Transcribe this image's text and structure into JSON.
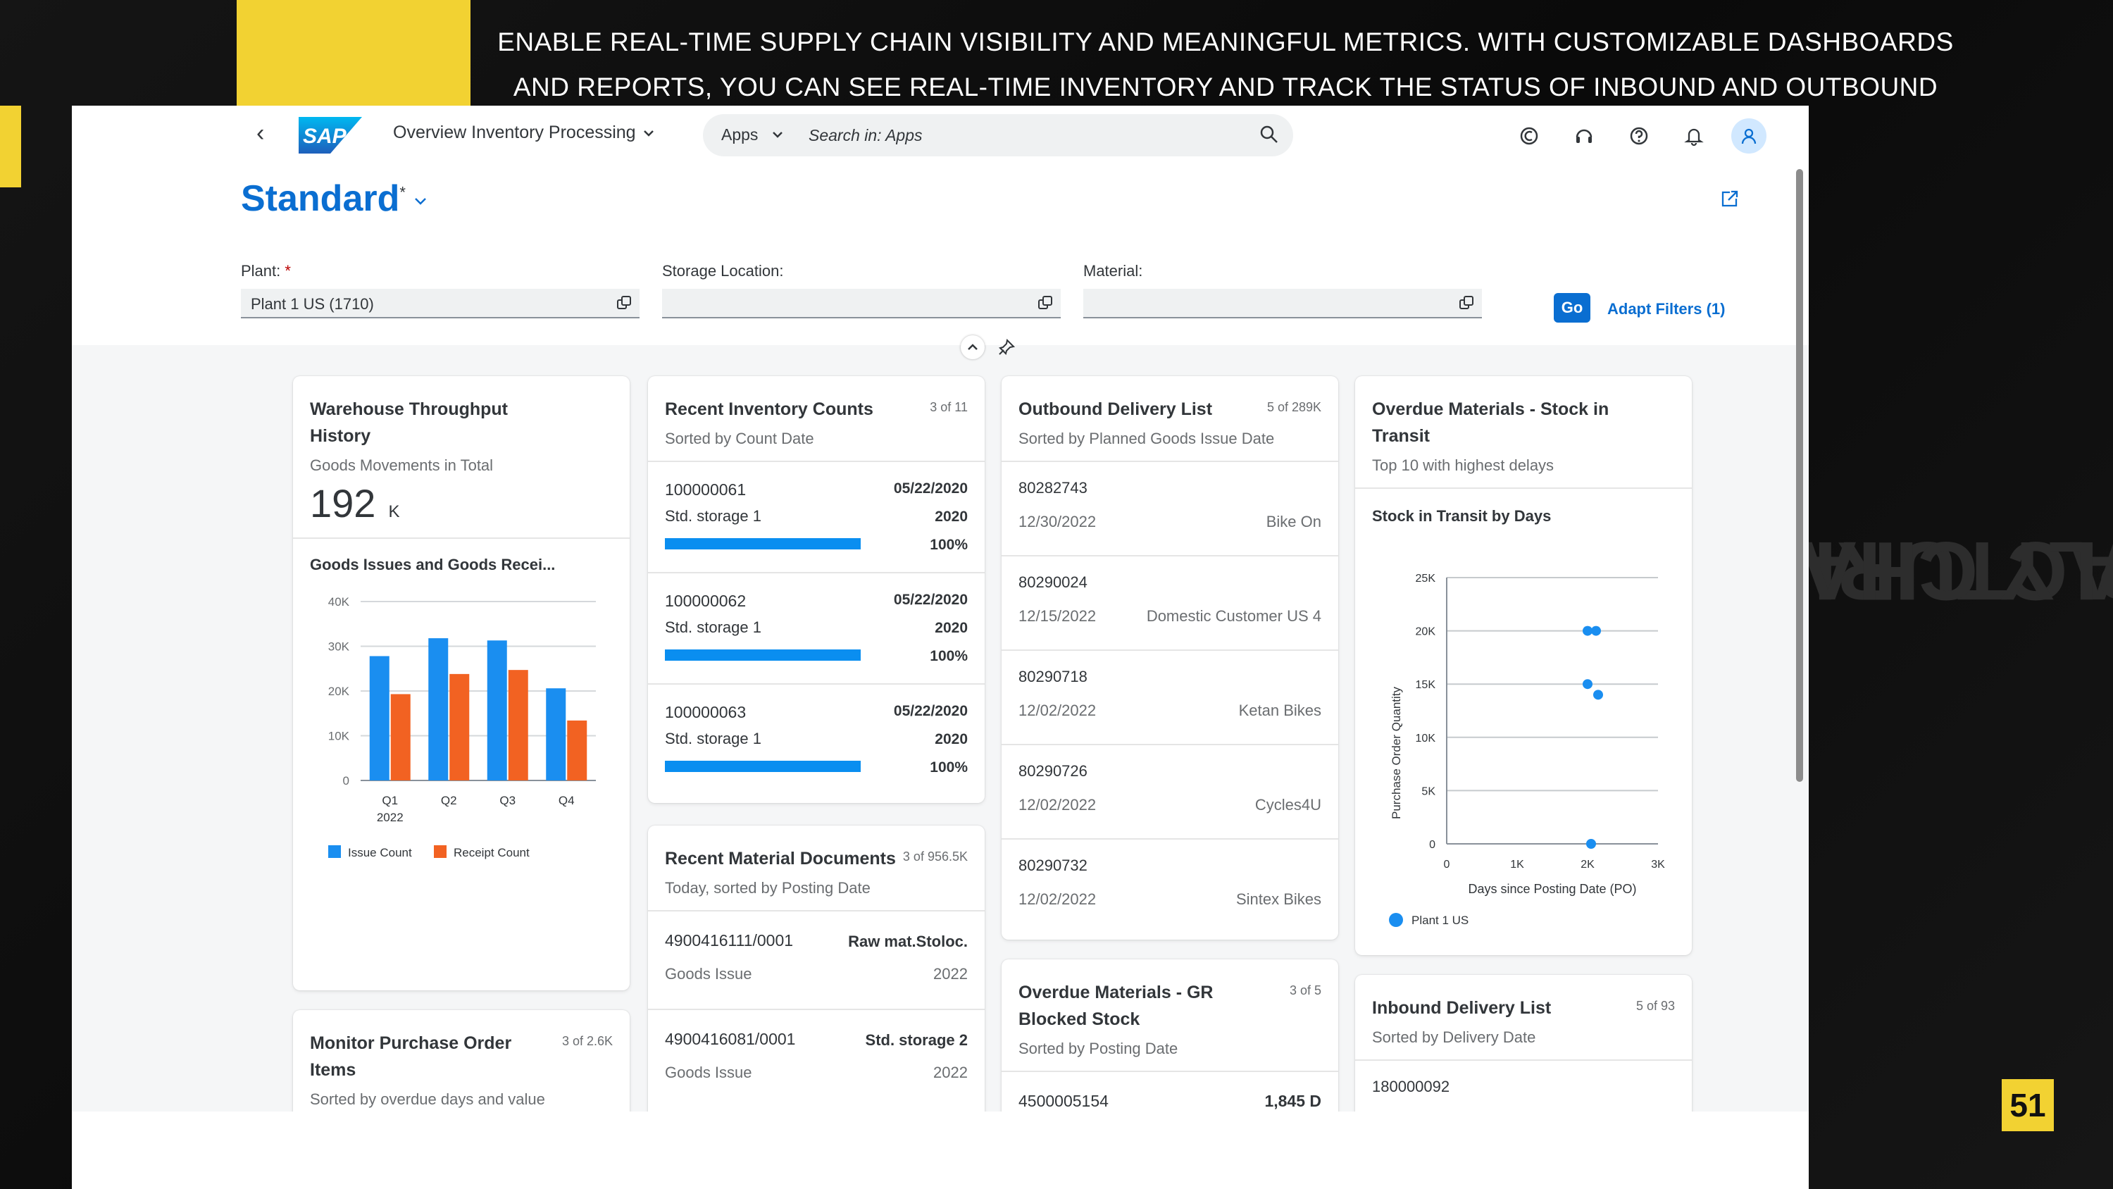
{
  "banner": {
    "line1": "ENABLE REAL-TIME SUPPLY CHAIN VISIBILITY AND MEANINGFUL METRICS. WITH CUSTOMIZABLE DASHBOARDS",
    "line2": "AND REPORTS, YOU CAN SEE REAL-TIME INVENTORY AND TRACK THE STATUS OF INBOUND AND OUTBOUND DELIVERIES.",
    "side_line1": "MANUFACTURING &",
    "side_line2": "SUPPLY CHAIN",
    "page_number": "51",
    "accent_color": "#f2d232"
  },
  "shell": {
    "logo_text": "SAP",
    "app_title": "Overview Inventory Processing",
    "search_scope": "Apps",
    "search_placeholder": "Search in: Apps",
    "icons": [
      "copilot-icon",
      "headset-icon",
      "help-icon",
      "notification-bell-icon",
      "user-avatar-icon"
    ]
  },
  "page": {
    "variant": "Standard",
    "variant_modified": "*"
  },
  "filters": {
    "plant": {
      "label": "Plant:",
      "required": "*",
      "value": "Plant 1 US (1710)"
    },
    "storage_location": {
      "label": "Storage Location:",
      "value": ""
    },
    "material": {
      "label": "Material:",
      "value": ""
    },
    "go": "Go",
    "adapt": "Adapt Filters (1)"
  },
  "cards": {
    "warehouse": {
      "title": "Warehouse Throughput History",
      "sub": "Goods Movements in Total",
      "kpi_value": "192",
      "kpi_unit": "K",
      "chart_title": "Goods Issues and Goods Recei..."
    },
    "inventory_counts": {
      "title": "Recent Inventory Counts",
      "count": "3 of 11",
      "sub": "Sorted by Count Date",
      "items": [
        {
          "id": "100000061",
          "date": "05/22/2020",
          "location": "Std. storage 1",
          "year": "2020",
          "progress": 100,
          "progress_label": "100%"
        },
        {
          "id": "100000062",
          "date": "05/22/2020",
          "location": "Std. storage 1",
          "year": "2020",
          "progress": 100,
          "progress_label": "100%"
        },
        {
          "id": "100000063",
          "date": "05/22/2020",
          "location": "Std. storage 1",
          "year": "2020",
          "progress": 100,
          "progress_label": "100%"
        }
      ]
    },
    "material_docs": {
      "title": "Recent Material Documents",
      "count": "3 of 956.5K",
      "sub": "Today, sorted by Posting Date",
      "items": [
        {
          "doc": "4900416111/0001",
          "loc": "Raw mat.Stoloc.",
          "type": "Goods Issue",
          "year": "2022"
        },
        {
          "doc": "4900416081/0001",
          "loc": "Std. storage 2",
          "type": "Goods Issue",
          "year": "2022"
        }
      ]
    },
    "outbound": {
      "title": "Outbound Delivery List",
      "count": "5 of 289K",
      "sub": "Sorted by Planned Goods Issue Date",
      "items": [
        {
          "id": "80282743",
          "date": "12/30/2022",
          "customer": "Bike On"
        },
        {
          "id": "80290024",
          "date": "12/15/2022",
          "customer": "Domestic Customer US 4"
        },
        {
          "id": "80290718",
          "date": "12/02/2022",
          "customer": "Ketan Bikes"
        },
        {
          "id": "80290726",
          "date": "12/02/2022",
          "customer": "Cycles4U"
        },
        {
          "id": "80290732",
          "date": "12/02/2022",
          "customer": "Sintex Bikes"
        }
      ]
    },
    "overdue_gr": {
      "title": "Overdue Materials - GR Blocked Stock",
      "count": "3 of 5",
      "sub": "Sorted by Posting Date",
      "peek_left": "4500005154",
      "peek_right": "1,845 D"
    },
    "overdue_transit": {
      "title": "Overdue Materials - Stock in Transit",
      "sub": "Top 10 with highest delays",
      "chart_title": "Stock in Transit by Days"
    },
    "inbound": {
      "title": "Inbound Delivery List",
      "count": "5 of 93",
      "sub": "Sorted by Delivery Date",
      "first_item": "180000092"
    },
    "monitor_po": {
      "title": "Monitor Purchase Order Items",
      "count": "3 of 2.6K",
      "sub": "Sorted by overdue days and value"
    }
  },
  "chart_data": [
    {
      "type": "bar",
      "categories": [
        "Q1",
        "Q2",
        "Q3",
        "Q4"
      ],
      "category_sublabels": [
        "2022",
        "",
        "",
        ""
      ],
      "series": [
        {
          "name": "Issue Count",
          "color": "#1a8ef0",
          "values": [
            27800,
            31800,
            31300,
            20600
          ]
        },
        {
          "name": "Receipt Count",
          "color": "#f26222",
          "values": [
            19300,
            23800,
            24700,
            13400
          ]
        }
      ],
      "ylim": [
        0,
        40000
      ],
      "yticks": [
        0,
        10000,
        20000,
        30000,
        40000
      ],
      "ytick_labels": [
        "0",
        "10K",
        "20K",
        "30K",
        "40K"
      ],
      "legend": "bottom-left"
    },
    {
      "type": "scatter",
      "title": "Stock in Transit by Days",
      "xlabel": "Days since Posting Date (PO)",
      "ylabel": "Purchase Order Quantity",
      "xlim": [
        0,
        3000
      ],
      "ylim": [
        0,
        25000
      ],
      "xticks": [
        0,
        1000,
        2000,
        3000
      ],
      "xtick_labels": [
        "0",
        "1K",
        "2K",
        "3K"
      ],
      "yticks": [
        0,
        5000,
        10000,
        15000,
        20000,
        25000
      ],
      "ytick_labels": [
        "0",
        "5K",
        "10K",
        "15K",
        "20K",
        "25K"
      ],
      "series": [
        {
          "name": "Plant 1 US",
          "color": "#1a8ef0",
          "points": [
            [
              2000,
              20000
            ],
            [
              2120,
              20000
            ],
            [
              2000,
              15000
            ],
            [
              2150,
              14000
            ],
            [
              2050,
              0
            ]
          ]
        }
      ],
      "legend": "bottom-left"
    }
  ]
}
